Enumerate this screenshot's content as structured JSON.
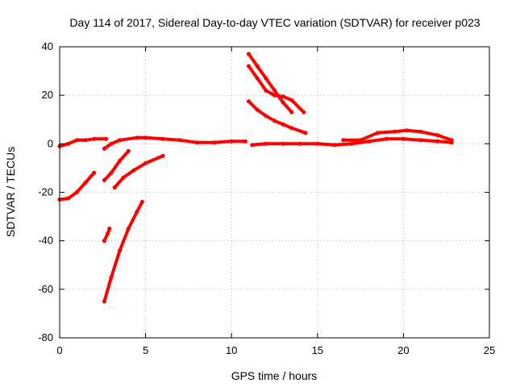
{
  "chart_data": {
    "type": "scatter",
    "title": "Day 114 of 2017, Sidereal Day-to-day VTEC variation (SDTVAR) for receiver p023",
    "xlabel": "GPS time / hours",
    "ylabel": "SDTVAR / TECUs",
    "xlim": [
      0,
      25
    ],
    "ylim": [
      -80,
      40
    ],
    "xticks": [
      0,
      5,
      10,
      15,
      20,
      25
    ],
    "yticks": [
      -80,
      -60,
      -40,
      -20,
      0,
      20,
      40
    ],
    "xtick_labels": [
      "0",
      "5",
      "10",
      "15",
      "20",
      "25"
    ],
    "ytick_labels": [
      "-80",
      "-60",
      "-40",
      "-20",
      "0",
      "20",
      "40"
    ],
    "grid": true,
    "legend": "none",
    "color": "#ff0000",
    "series": [
      {
        "points": [
          [
            0,
            -23
          ],
          [
            0.5,
            -22.5
          ],
          [
            1,
            -20
          ],
          [
            1.5,
            -16
          ],
          [
            2,
            -12
          ]
        ]
      },
      {
        "points": [
          [
            0,
            -1
          ],
          [
            0.5,
            0
          ],
          [
            1,
            1.5
          ],
          [
            1.5,
            1.5
          ],
          [
            2,
            2
          ],
          [
            2.7,
            2
          ]
        ]
      },
      {
        "points": [
          [
            2.6,
            -15
          ],
          [
            3,
            -12
          ],
          [
            3.5,
            -7
          ],
          [
            4,
            -3
          ]
        ]
      },
      {
        "points": [
          [
            3.2,
            -18
          ],
          [
            3.7,
            -14
          ],
          [
            4.3,
            -11
          ],
          [
            5,
            -8
          ],
          [
            6,
            -5
          ]
        ]
      },
      {
        "points": [
          [
            2.6,
            -40
          ],
          [
            2.8,
            -37
          ],
          [
            2.9,
            -35
          ]
        ]
      },
      {
        "points": [
          [
            2.6,
            -65
          ],
          [
            3,
            -55
          ],
          [
            3.5,
            -44
          ],
          [
            4,
            -35
          ],
          [
            4.5,
            -28
          ],
          [
            4.8,
            -24
          ]
        ]
      },
      {
        "points": [
          [
            2.6,
            -2
          ],
          [
            3,
            0
          ],
          [
            3.5,
            1.5
          ],
          [
            4.5,
            2.5
          ],
          [
            5,
            2.5
          ],
          [
            6,
            2
          ],
          [
            7,
            1.5
          ],
          [
            8,
            0.5
          ],
          [
            9,
            0.5
          ],
          [
            10,
            1
          ],
          [
            10.8,
            1
          ]
        ]
      },
      {
        "points": [
          [
            11.2,
            -0.5
          ],
          [
            12,
            0
          ],
          [
            13,
            0
          ],
          [
            14,
            0
          ],
          [
            15,
            0
          ],
          [
            16,
            -0.5
          ],
          [
            17,
            0
          ],
          [
            18,
            1
          ],
          [
            19,
            2
          ],
          [
            20,
            2
          ],
          [
            21,
            1.5
          ],
          [
            22,
            1
          ],
          [
            22.8,
            0.5
          ]
        ]
      },
      {
        "points": [
          [
            16.5,
            1.5
          ],
          [
            17.5,
            1.5
          ],
          [
            18.5,
            4.5
          ],
          [
            19.5,
            5
          ],
          [
            20.2,
            5.5
          ],
          [
            21,
            5
          ],
          [
            22,
            3.5
          ],
          [
            22.8,
            1.5
          ]
        ]
      },
      {
        "points": [
          [
            11,
            37
          ],
          [
            11.5,
            32
          ],
          [
            12,
            27
          ],
          [
            12.5,
            22
          ],
          [
            13,
            17
          ],
          [
            13.5,
            13
          ]
        ]
      },
      {
        "points": [
          [
            11,
            32
          ],
          [
            11.5,
            27
          ],
          [
            12,
            22
          ],
          [
            12.5,
            20
          ],
          [
            13,
            19.5
          ],
          [
            13.5,
            18
          ],
          [
            14.2,
            13
          ]
        ]
      },
      {
        "points": [
          [
            11,
            17.5
          ],
          [
            11.5,
            14
          ],
          [
            12,
            11.5
          ],
          [
            12.5,
            9.5
          ],
          [
            13,
            8
          ],
          [
            13.5,
            6.5
          ],
          [
            14.3,
            4.5
          ]
        ]
      }
    ]
  }
}
